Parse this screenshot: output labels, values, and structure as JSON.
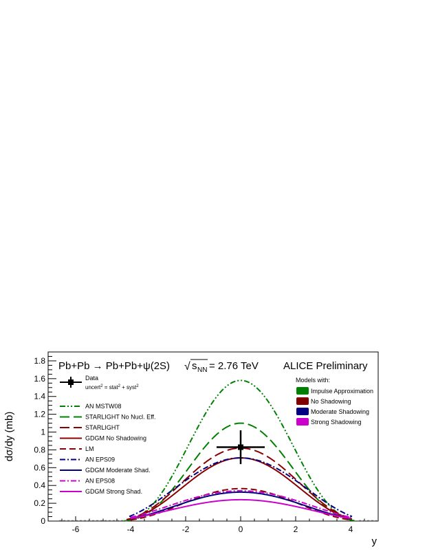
{
  "chart_data": {
    "type": "line",
    "title": "Pb+Pb → Pb+Pb+ψ(2S)",
    "energy_label_prefix": "√",
    "energy_label_s": "s",
    "energy_label_sub": "NN",
    "energy_label_value": "= 2.76 TeV",
    "experiment_label": "ALICE Preliminary",
    "xlabel": "y",
    "ylabel": "dσ/dy (mb)",
    "xlim": [
      -7,
      5
    ],
    "ylim": [
      0,
      1.9
    ],
    "x_ticks": [
      -6,
      -4,
      -2,
      0,
      2,
      4
    ],
    "x_tick_labels": [
      "-6",
      "-4",
      "-2",
      "0",
      "2",
      "4"
    ],
    "y_ticks": [
      0,
      0.2,
      0.4,
      0.6,
      0.8,
      1,
      1.2,
      1.4,
      1.6,
      1.8
    ],
    "y_tick_labels": [
      "0",
      "0.2",
      "0.4",
      "0.6",
      "0.8",
      "1",
      "1.2",
      "1.4",
      "1.6",
      "1.8"
    ],
    "grid": false,
    "legend_position": "top-left",
    "data_point": {
      "label": "Data",
      "uncert_label": "uncert² = stat² + syst²",
      "x": 0,
      "y": 0.83,
      "x_err": 0.875,
      "y_err": 0.19
    },
    "series": [
      {
        "name": "AN MSTW08",
        "peak": 1.58,
        "edge": 4.05,
        "model": "impulse",
        "color": "#008000",
        "dash": "dashdotdot"
      },
      {
        "name": "STARLIGHT No Nucl. Eff.",
        "peak": 1.1,
        "edge": 4.25,
        "model": "impulse",
        "color": "#008000",
        "dash": "longdash"
      },
      {
        "name": "STARLIGHT",
        "peak": 0.82,
        "edge": 4.15,
        "model": "noshadow",
        "color": "#8b0000",
        "dash": "longdash"
      },
      {
        "name": "GDGM No Shadowing",
        "peak": 0.71,
        "edge": 4.05,
        "model": "noshadow",
        "color": "#8b0000",
        "dash": "solid"
      },
      {
        "name": "LM",
        "peak": 0.365,
        "edge": 4.0,
        "model": "noshadow",
        "color": "#8b0000",
        "dash": "dash"
      },
      {
        "name": "AN EPS09",
        "peak": 0.71,
        "edge": 4.05,
        "model": "moderate",
        "color": "#000080",
        "dash": "dashdot"
      },
      {
        "name": "GDGM Moderate Shad.",
        "peak": 0.325,
        "edge": 4.0,
        "model": "moderate",
        "color": "#000080",
        "dash": "solid"
      },
      {
        "name": "AN EPS08",
        "peak": 0.34,
        "edge": 4.0,
        "model": "strong",
        "color": "#cc00cc",
        "dash": "dashdot"
      },
      {
        "name": "GDGM Strong Shad.",
        "peak": 0.24,
        "edge": 4.0,
        "model": "strong",
        "color": "#cc00cc",
        "dash": "solid"
      }
    ],
    "models_legend": {
      "title": "Models with:",
      "items": [
        {
          "label": "Impulse Approximation",
          "color": "#008000"
        },
        {
          "label": "No Shadowing",
          "color": "#800000"
        },
        {
          "label": "Moderate Shadowing",
          "color": "#000080"
        },
        {
          "label": "Strong Shadowing",
          "color": "#cc00cc"
        }
      ]
    }
  }
}
